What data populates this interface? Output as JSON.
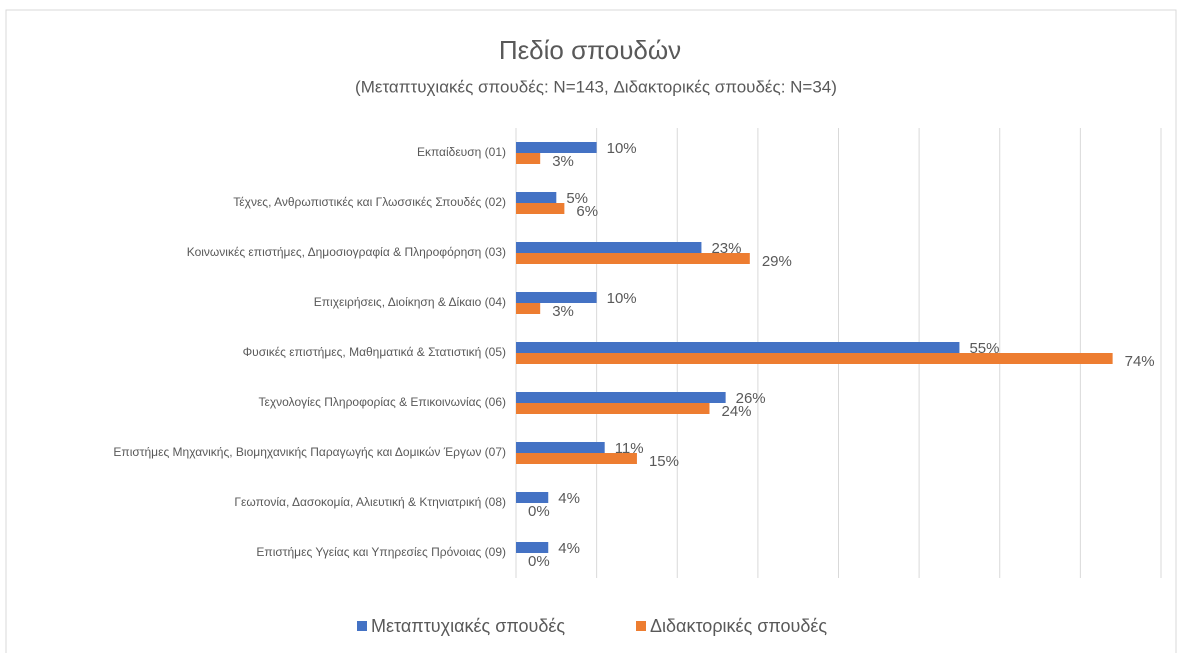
{
  "chart_data": {
    "type": "hbar",
    "title": "Πεδίο σπουδών",
    "subtitle": "(Μεταπτυχιακές σπουδές: N=143, Διδακτορικές σπουδές: N=34)",
    "categories": [
      "Εκπαίδευση (01)",
      "Τέχνες, Ανθρωπιστικές και Γλωσσικές Σπουδές (02)",
      "Κοινωνικές επιστήμες, Δημοσιογραφία & Πληροφόρηση (03)",
      "Επιχειρήσεις, Διοίκηση & Δίκαιο (04)",
      "Φυσικές επιστήμες, Μαθηματικά & Στατιστική (05)",
      "Τεχνολογίες Πληροφορίας & Επικοινωνίας (06)",
      "Επιστήμες Μηχανικής, Βιομηχανικής Παραγωγής και Δομικών Έργων (07)",
      "Γεωπονία, Δασοκομία, Αλιευτική & Κτηνιατρική (08)",
      "Επιστήμες Υγείας και Υπηρεσίες Πρόνοιας (09)"
    ],
    "series": [
      {
        "name": "Μεταπτυχιακές σπουδές",
        "color": "#4472c4",
        "values": [
          10,
          5,
          23,
          10,
          55,
          26,
          11,
          4,
          4
        ],
        "value_labels": [
          "10%",
          "5%",
          "23%",
          "10%",
          "55%",
          "26%",
          "11%",
          "4%",
          "4%"
        ]
      },
      {
        "name": "Διδακτορικές σπουδές",
        "color": "#ed7d31",
        "values": [
          3,
          6,
          29,
          3,
          74,
          24,
          15,
          0,
          0
        ],
        "value_labels": [
          "3%",
          "6%",
          "29%",
          "3%",
          "74%",
          "24%",
          "15%",
          "0%",
          "0%"
        ]
      }
    ],
    "xlim": [
      0,
      80
    ],
    "xticks": [
      0,
      10,
      20,
      30,
      40,
      50,
      60,
      70,
      80
    ],
    "grid": true,
    "legend": "bottom"
  }
}
